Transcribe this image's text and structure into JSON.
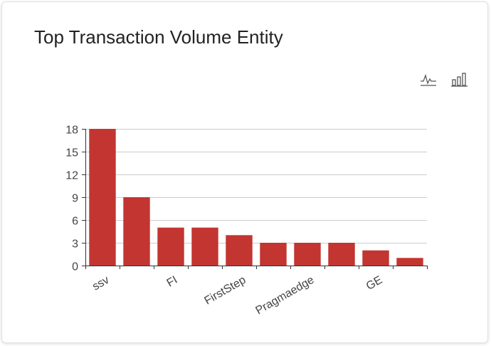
{
  "card": {
    "title": "Top Transaction Volume Entity"
  },
  "toolbox": {
    "items": [
      {
        "name": "line-chart-icon"
      },
      {
        "name": "bar-chart-icon"
      }
    ]
  },
  "colors": {
    "bar": "#c23531",
    "grid": "#cccccc",
    "axis": "#333333",
    "text": "#444444"
  },
  "chart_data": {
    "type": "bar",
    "categories": [
      "ssv",
      "",
      "FI",
      "",
      "FirstStep",
      "",
      "Pragmaedge",
      "",
      "GE",
      ""
    ],
    "values": [
      18,
      9,
      5,
      5,
      4,
      3,
      3,
      3,
      2,
      1
    ],
    "yticks": [
      0,
      3,
      6,
      9,
      12,
      15,
      18
    ],
    "ylim": [
      0,
      18
    ],
    "title": "Top Transaction Volume Entity",
    "xlabel": "",
    "ylabel": "",
    "grid": true,
    "x_label_rotation_deg": -30
  }
}
